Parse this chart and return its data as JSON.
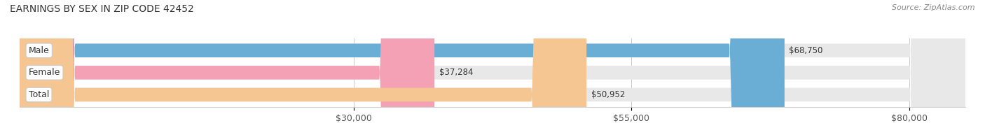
{
  "title": "EARNINGS BY SEX IN ZIP CODE 42452",
  "source": "Source: ZipAtlas.com",
  "categories": [
    "Male",
    "Female",
    "Total"
  ],
  "values": [
    68750,
    37284,
    50952
  ],
  "bar_colors": [
    "#6aaed6",
    "#f4a0b5",
    "#f5c592"
  ],
  "bar_bg_color": "#e8e8e8",
  "x_min": 0,
  "x_max": 85000,
  "tick_values": [
    30000,
    55000,
    80000
  ],
  "tick_labels": [
    "$30,000",
    "$55,000",
    "$80,000"
  ],
  "bar_height": 0.62,
  "label_fontsize": 9,
  "title_fontsize": 10,
  "value_fontsize": 8.5,
  "source_fontsize": 8
}
